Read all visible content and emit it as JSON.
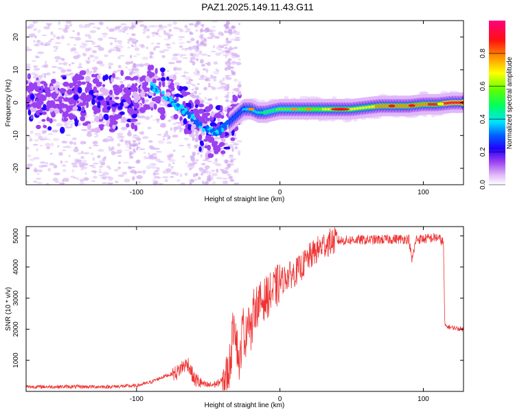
{
  "title": "PAZ1.2025.149.11.43.G11",
  "chart_data": [
    {
      "type": "heatmap",
      "xlabel": "Height of straight line (km)",
      "ylabel": "Frequency (Hz)",
      "xlim": [
        -177,
        128
      ],
      "ylim": [
        -25,
        25
      ],
      "xticks": [
        -100,
        0,
        100
      ],
      "yticks": [
        -20,
        -10,
        0,
        10,
        20
      ],
      "colorbar": {
        "label": "Normalized spectral amplitude",
        "range": [
          0,
          1
        ],
        "ticks": [
          "0.0",
          "0.2",
          "0.4",
          "0.6",
          "0.8"
        ],
        "tick_values": [
          0.0,
          0.2,
          0.4,
          0.6,
          0.8
        ]
      },
      "ridge": {
        "x": [
          -175,
          -160,
          -140,
          -120,
          -100,
          -90,
          -85,
          -75,
          -65,
          -55,
          -45,
          -40,
          -35,
          -30,
          -25,
          -20,
          -15,
          -10,
          0,
          10,
          20,
          30,
          40,
          50,
          60,
          70,
          80,
          90,
          100,
          110,
          120,
          128
        ],
        "y": [
          1,
          0.5,
          0.5,
          0,
          1,
          5,
          4,
          0,
          -3,
          -7,
          -9,
          -8,
          -6,
          -4,
          -2,
          -2,
          -3,
          -3,
          -2,
          -2,
          -2,
          -2,
          -2,
          -2,
          -1.5,
          -1,
          -1,
          -1,
          -0.5,
          -0.5,
          0,
          0
        ]
      }
    },
    {
      "type": "line",
      "xlabel": "Height of straight line (km)",
      "ylabel": "SNR (10 * v/v)",
      "xlim": [
        -177,
        128
      ],
      "ylim": [
        0,
        5300
      ],
      "xticks": [
        -100,
        0,
        100
      ],
      "yticks": [
        1000,
        2000,
        3000,
        4000,
        5000
      ],
      "color": "#ee3333",
      "series": [
        {
          "x": [
            -177,
            -160,
            -140,
            -120,
            -100,
            -90,
            -80,
            -72,
            -68,
            -64,
            -60,
            -56,
            -52,
            -48,
            -44,
            -40,
            -36,
            -34,
            -32,
            -30,
            -28,
            -26,
            -24,
            -22,
            -20,
            -18,
            -15,
            -10,
            -5,
            0,
            5,
            10,
            15,
            20,
            25,
            30,
            35,
            40,
            45,
            50,
            60,
            70,
            80,
            90,
            92,
            95,
            100,
            110,
            114,
            115,
            120,
            128
          ],
          "y": [
            150,
            150,
            150,
            150,
            180,
            300,
            500,
            600,
            800,
            900,
            400,
            300,
            200,
            200,
            250,
            350,
            600,
            1200,
            2500,
            1500,
            800,
            2200,
            1600,
            2600,
            1800,
            2700,
            2800,
            3000,
            3200,
            3500,
            3700,
            3800,
            4000,
            4300,
            4500,
            4700,
            4800,
            4850,
            4850,
            4870,
            4870,
            4880,
            4900,
            4900,
            4200,
            4900,
            4900,
            4950,
            4800,
            2100,
            2050,
            2000
          ]
        }
      ]
    }
  ]
}
